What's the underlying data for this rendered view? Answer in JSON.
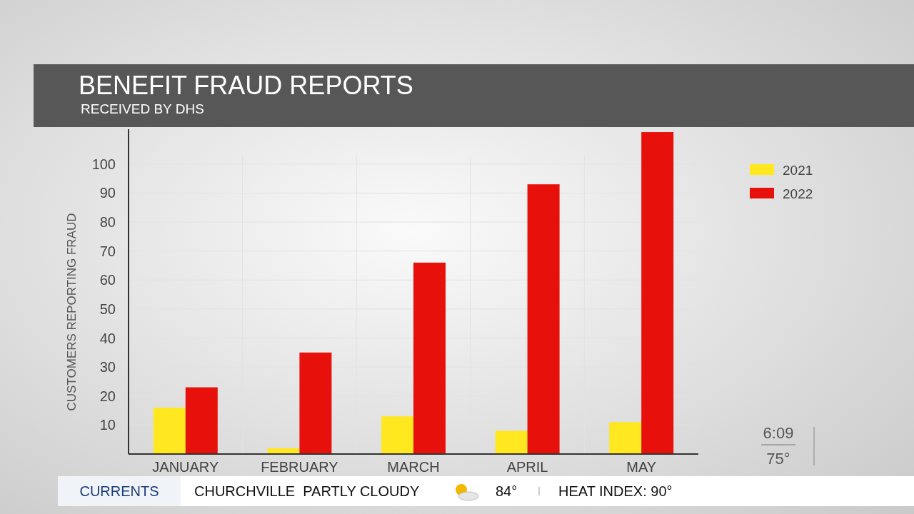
{
  "chart_data": {
    "type": "bar",
    "title": "BENEFIT FRAUD REPORTS",
    "subtitle": "RECEIVED BY DHS",
    "ylabel": "CUSTOMERS REPORTING FRAUD",
    "categories": [
      "JANUARY",
      "FEBRUARY",
      "MARCH",
      "APRIL",
      "MAY"
    ],
    "series": [
      {
        "name": "2021",
        "color": "#ffe820",
        "values": [
          16,
          2,
          13,
          8,
          11
        ]
      },
      {
        "name": "2022",
        "color": "#e8100a",
        "values": [
          23,
          35,
          66,
          93,
          111
        ]
      }
    ],
    "ylim": [
      0,
      112
    ],
    "yticks": [
      10,
      20,
      30,
      40,
      50,
      60,
      70,
      80,
      90,
      100
    ],
    "grid": true,
    "legend": "top right",
    "annotations": [
      "CURRENTS",
      "CHURCHVILLE  PARTLY CLOUDY",
      "84°",
      "HEAT INDEX: 90°",
      "6:09",
      "75°"
    ]
  }
}
